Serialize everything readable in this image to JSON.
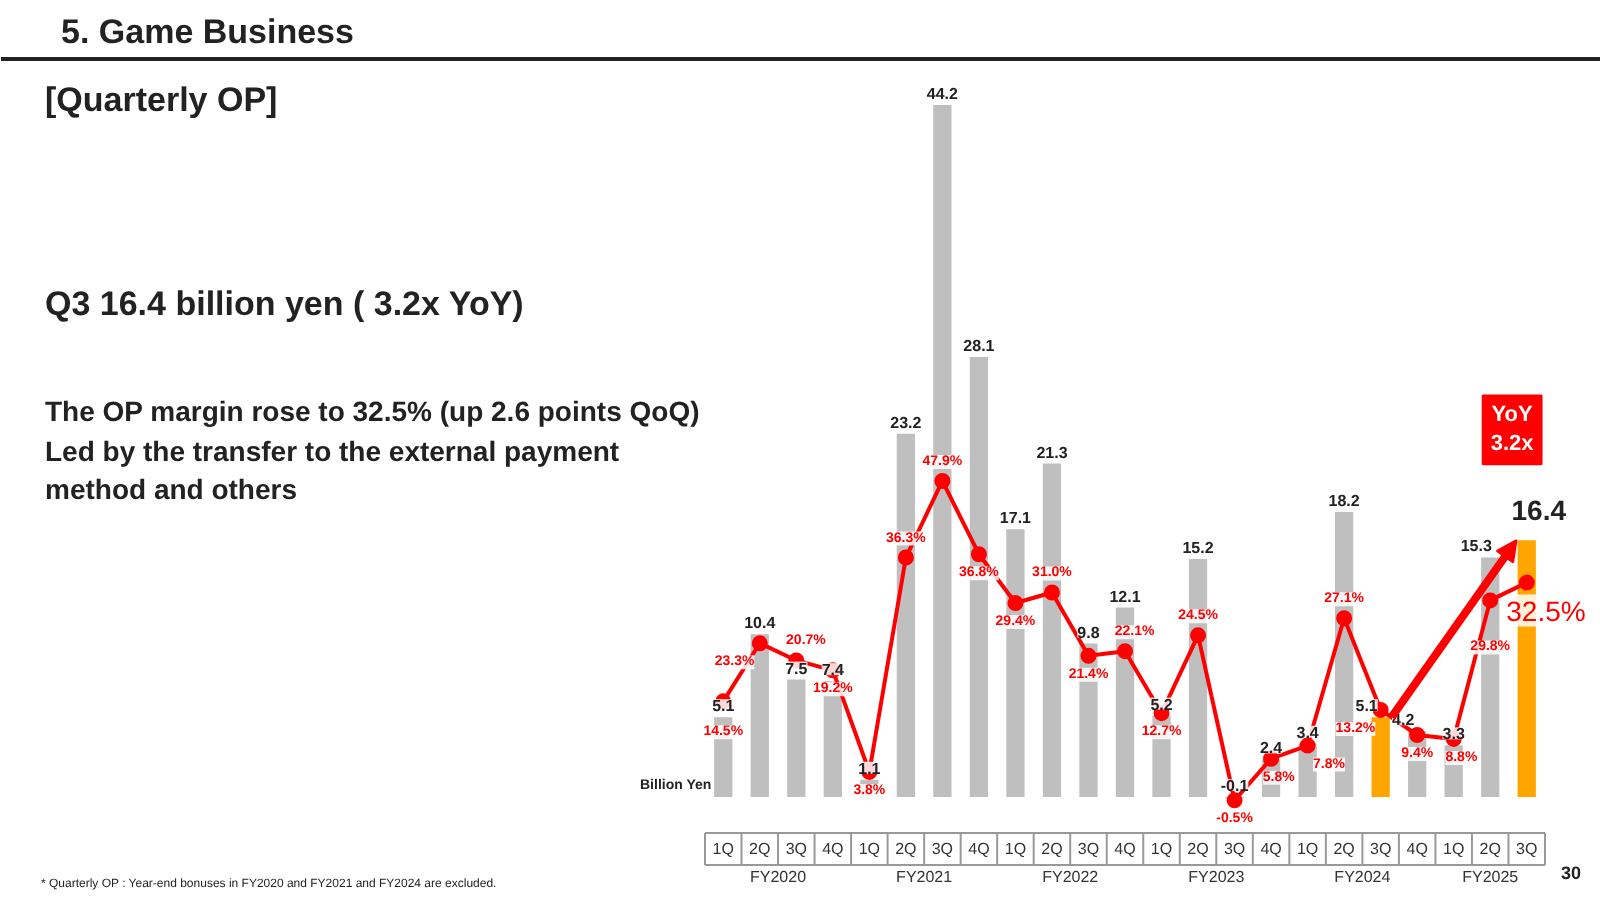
{
  "chart_data": {
    "type": "bar",
    "title": "5.  Game Business",
    "subtitle": "[Quarterly OP]",
    "ylabel": "Billion Yen",
    "categories": [
      "1Q",
      "2Q",
      "3Q",
      "4Q",
      "1Q",
      "2Q",
      "3Q",
      "4Q",
      "1Q",
      "2Q",
      "3Q",
      "4Q",
      "1Q",
      "2Q",
      "3Q",
      "4Q",
      "1Q",
      "2Q",
      "3Q",
      "4Q",
      "1Q",
      "2Q",
      "3Q"
    ],
    "series": [
      {
        "colors": [
          "#bfbfbf",
          "#bfbfbf",
          "#bfbfbf",
          "#bfbfbf",
          "#bfbfbf",
          "#bfbfbf",
          "#bfbfbf",
          "#bfbfbf",
          "#bfbfbf",
          "#bfbfbf",
          "#bfbfbf",
          "#bfbfbf",
          "#bfbfbf",
          "#bfbfbf",
          "#bfbfbf",
          "#bfbfbf",
          "#bfbfbf",
          "#bfbfbf",
          "#ffa500",
          "#bfbfbf",
          "#bfbfbf",
          "#bfbfbf",
          "#ffa500"
        ],
        "values": [
          5.1,
          10.4,
          7.5,
          7.4,
          1.1,
          23.2,
          44.2,
          28.1,
          17.1,
          21.3,
          9.8,
          12.1,
          5.2,
          15.2,
          -0.1,
          2.4,
          3.4,
          18.2,
          5.1,
          4.2,
          3.3,
          15.3,
          16.4
        ]
      },
      {
        "type": "line",
        "axis": "y2",
        "color": "#ff0000",
        "marker": "circle",
        "values": [
          14.5,
          23.3,
          20.7,
          19.2,
          3.8,
          36.3,
          47.9,
          36.8,
          29.4,
          31.0,
          21.4,
          22.1,
          12.7,
          24.5,
          -0.5,
          5.8,
          7.8,
          27.1,
          13.2,
          9.4,
          8.8,
          29.8,
          32.5
        ],
        "value_labels": [
          "14.5%",
          "23.3%",
          "20.7%",
          "19.2%",
          "3.8%",
          "36.3%",
          "47.9%",
          "36.8%",
          "29.4%",
          "31.0%",
          "21.4%",
          "22.1%",
          "12.7%",
          "24.5%",
          "-0.5%",
          "5.8%",
          "7.8%",
          "27.1%",
          "13.2%",
          "9.4%",
          "8.8%",
          "29.8%",
          "32.5%"
        ]
      }
    ],
    "data_labels": true,
    "grid": false,
    "annotations": [
      "Q3 16.4 billion yen ( 3.2x YoY)",
      "The OP margin rose to 32.5% (up 2.6 points QoQ)",
      "Led by the transfer to the external payment method and others",
      "YoY 3.2x",
      "*  Quarterly OP : Year-end bonuses in FY2020 and FY2021 and FY2024 are excluded.",
      "30",
      "FY2020",
      "FY2021",
      "FY2022",
      "FY2023",
      "FY2024",
      "FY2025"
    ]
  }
}
